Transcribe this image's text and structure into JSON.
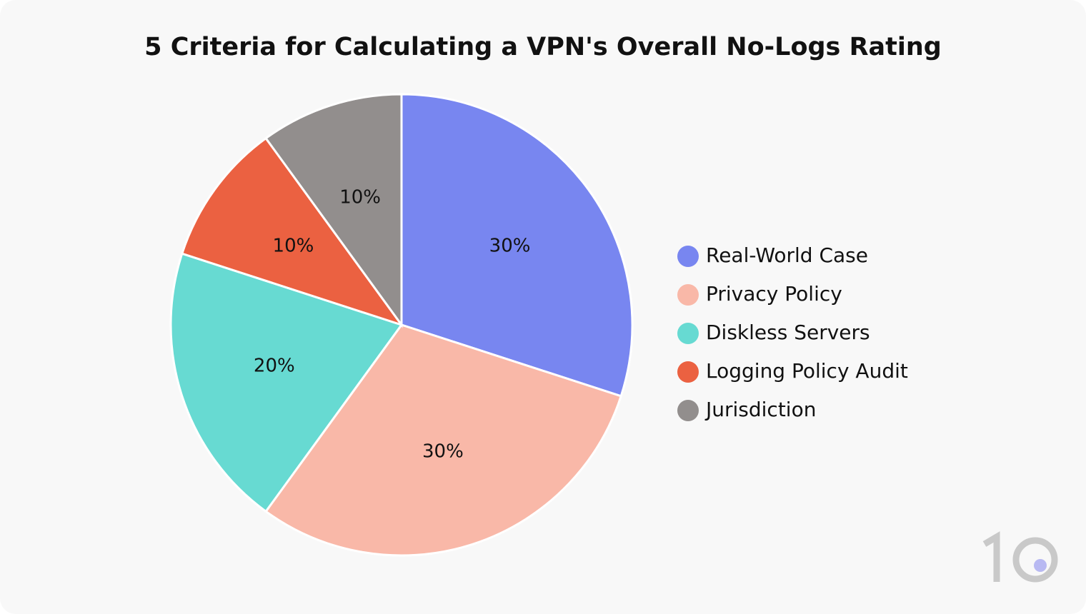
{
  "chart_data": {
    "type": "pie",
    "title": "5 Criteria for Calculating a VPN's Overall No-Logs Rating",
    "categories": [
      "Real-World Case",
      "Privacy Policy",
      "Diskless Servers",
      "Logging Policy Audit",
      "Jurisdiction"
    ],
    "values": [
      30,
      30,
      20,
      10,
      10
    ],
    "value_labels": [
      "30%",
      "30%",
      "20%",
      "10%",
      "10%"
    ],
    "colors": [
      "#7886f0",
      "#f9b8a8",
      "#67dad2",
      "#eb6141",
      "#928e8d"
    ],
    "legend": "right"
  }
}
